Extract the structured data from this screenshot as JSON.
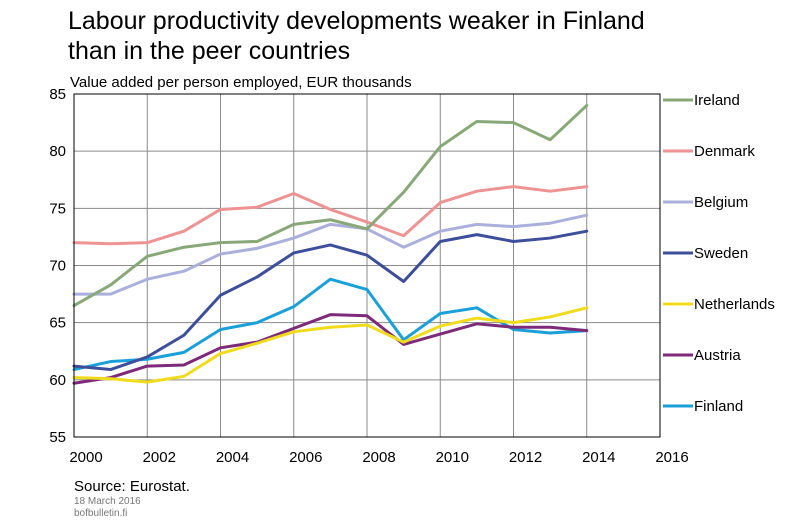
{
  "title_line1": "Labour productivity developments weaker in Finland",
  "title_line2": "than in the peer countries",
  "subtitle": "Value added per person employed, EUR thousands",
  "source": "Source: Eurostat.",
  "date": "18 March 2016",
  "site": "bofbulletin.fi",
  "chart_data": {
    "type": "line",
    "title": "Labour productivity developments weaker in Finland than in the peer countries",
    "ylabel": "Value added per person employed, EUR thousands",
    "xlim": [
      2000,
      2016
    ],
    "ylim": [
      55,
      85
    ],
    "x_ticks": [
      2000,
      2002,
      2004,
      2006,
      2008,
      2010,
      2012,
      2014,
      2016
    ],
    "y_ticks": [
      55,
      60,
      65,
      70,
      75,
      80,
      85
    ],
    "grid": true,
    "legend_position": "right",
    "x": [
      2000,
      2001,
      2002,
      2003,
      2004,
      2005,
      2006,
      2007,
      2008,
      2009,
      2010,
      2011,
      2012,
      2013,
      2014
    ],
    "series": [
      {
        "name": "Ireland",
        "color": "#88a878",
        "values": [
          66.5,
          68.3,
          70.8,
          71.6,
          72.0,
          72.1,
          73.6,
          74.0,
          73.2,
          76.4,
          80.4,
          82.6,
          82.5,
          81.0,
          84.0
        ]
      },
      {
        "name": "Denmark",
        "color": "#ee9393",
        "values": [
          72.0,
          71.9,
          72.0,
          73.0,
          74.9,
          75.1,
          76.3,
          74.9,
          73.8,
          72.6,
          75.5,
          76.5,
          76.9,
          76.5,
          76.9
        ]
      },
      {
        "name": "Belgium",
        "color": "#aab0db",
        "values": [
          67.5,
          67.5,
          68.8,
          69.5,
          71.0,
          71.5,
          72.4,
          73.6,
          73.2,
          71.6,
          73.0,
          73.6,
          73.4,
          73.7,
          74.4
        ]
      },
      {
        "name": "Sweden",
        "color": "#3d4f9a",
        "values": [
          61.2,
          60.9,
          62.0,
          63.9,
          67.4,
          69.0,
          71.1,
          71.8,
          70.9,
          68.6,
          72.1,
          72.7,
          72.1,
          72.4,
          73.0
        ]
      },
      {
        "name": "Netherlands",
        "color": "#f0dc1c",
        "values": [
          60.2,
          60.1,
          59.8,
          60.3,
          62.3,
          63.2,
          64.2,
          64.6,
          64.8,
          63.3,
          64.7,
          65.4,
          65.0,
          65.5,
          66.3
        ]
      },
      {
        "name": "Austria",
        "color": "#7d2a7a",
        "values": [
          59.7,
          60.2,
          61.2,
          61.3,
          62.8,
          63.3,
          64.5,
          65.7,
          65.6,
          63.1,
          64.0,
          64.9,
          64.6,
          64.6,
          64.3
        ]
      },
      {
        "name": "Finland",
        "color": "#1aa0d8",
        "values": [
          60.9,
          61.6,
          61.8,
          62.4,
          64.4,
          65.0,
          66.4,
          68.8,
          67.9,
          63.5,
          65.8,
          66.3,
          64.4,
          64.1,
          64.3
        ]
      }
    ]
  }
}
